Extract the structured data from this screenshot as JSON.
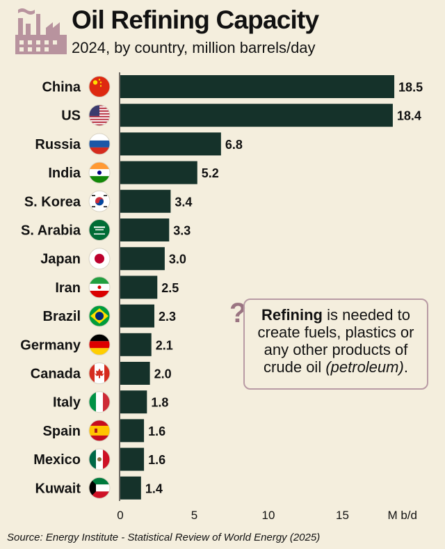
{
  "title": "Oil Refining Capacity",
  "subtitle": "2024, by country, million barrels/day",
  "callout": {
    "bold": "Refining",
    "line1_rest": " is needed to",
    "line2": "create fuels, plastics or",
    "line3": "any other products of",
    "line4_start": "crude oil ",
    "line4_italic": "(petroleum)",
    "line4_end": "."
  },
  "source": "Source: Energy Institute - Statistical Review of World Energy (2025)",
  "colors": {
    "bar": "#15322a",
    "background": "#f4eedd",
    "accent": "#9a7481"
  },
  "chart_data": {
    "type": "bar",
    "orientation": "horizontal",
    "categories": [
      "China",
      "US",
      "Russia",
      "India",
      "S. Korea",
      "S. Arabia",
      "Japan",
      "Iran",
      "Brazil",
      "Germany",
      "Canada",
      "Italy",
      "Spain",
      "Mexico",
      "Kuwait"
    ],
    "values": [
      18.5,
      18.4,
      6.8,
      5.2,
      3.4,
      3.3,
      3.0,
      2.5,
      2.3,
      2.1,
      2.0,
      1.8,
      1.6,
      1.6,
      1.4
    ],
    "value_labels": [
      "18.5",
      "18.4",
      "6.8",
      "5.2",
      "3.4",
      "3.3",
      "3.0",
      "2.5",
      "2.3",
      "2.1",
      "2.0",
      "1.8",
      "1.6",
      "1.6",
      "1.4"
    ],
    "flags": [
      "china-flag-icon",
      "us-flag-icon",
      "russia-flag-icon",
      "india-flag-icon",
      "south-korea-flag-icon",
      "saudi-arabia-flag-icon",
      "japan-flag-icon",
      "iran-flag-icon",
      "brazil-flag-icon",
      "germany-flag-icon",
      "canada-flag-icon",
      "italy-flag-icon",
      "spain-flag-icon",
      "mexico-flag-icon",
      "kuwait-flag-icon"
    ],
    "xticks": [
      0,
      5,
      10,
      15
    ],
    "xtick_labels": [
      "0",
      "5",
      "10",
      "15"
    ],
    "xunit": "M b/d",
    "xlim": [
      0,
      20
    ],
    "grid": false
  }
}
